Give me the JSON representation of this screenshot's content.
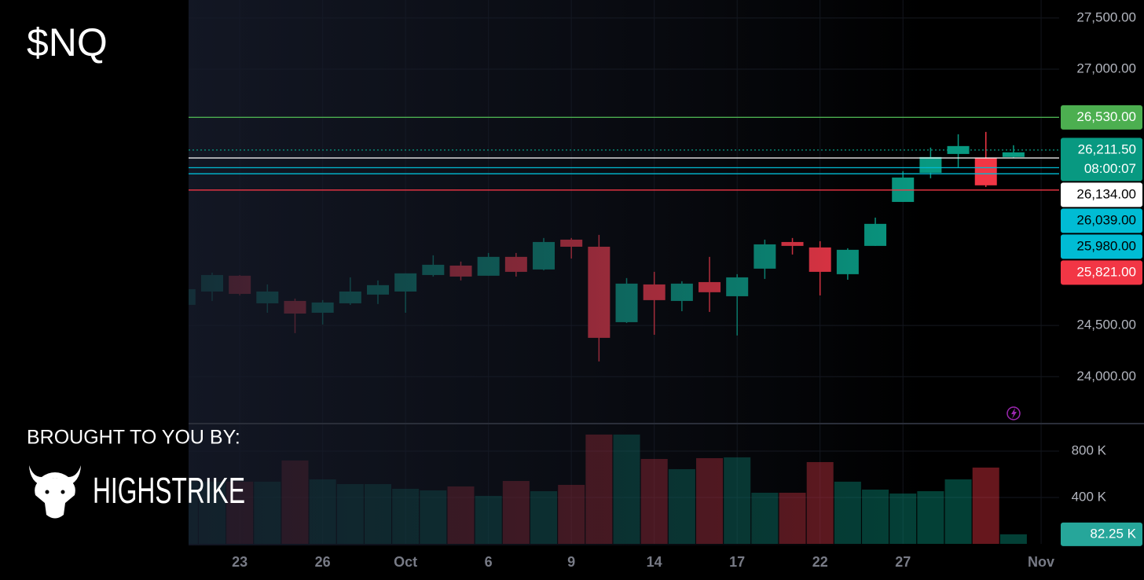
{
  "chart_data": {
    "type": "candlestick",
    "title": "$NQ",
    "up_color": "#089981",
    "down_color": "#f23645",
    "grid": true,
    "categories": [
      null,
      null,
      "23",
      null,
      null,
      "26",
      null,
      null,
      "Oct",
      null,
      null,
      "6",
      null,
      null,
      "9",
      null,
      null,
      "14",
      null,
      null,
      "17",
      null,
      null,
      "22",
      null,
      null,
      "27",
      null,
      null,
      null,
      null,
      "Nov"
    ],
    "ohlc": {
      "open": [
        24701,
        24831,
        24985,
        24716,
        24739,
        24624,
        24716,
        24801,
        24831,
        24992,
        25084,
        24985,
        25169,
        25046,
        25337,
        25268,
        24532,
        24900,
        24739,
        24923,
        24785,
        25054,
        25314,
        25261,
        25000,
        25276,
        25705,
        25989,
        26173,
        26135,
        26143,
        null
      ],
      "high": [
        24870,
        25015,
        24992,
        24900,
        24762,
        24747,
        24969,
        24939,
        25008,
        25184,
        25123,
        25207,
        25207,
        25353,
        25353,
        25383,
        24962,
        25023,
        24931,
        25169,
        25000,
        25337,
        25353,
        25322,
        25253,
        25552,
        26005,
        26235,
        26365,
        26388,
        26258,
        null
      ],
      "low": [
        24685,
        24739,
        24793,
        24624,
        24425,
        24509,
        24701,
        24709,
        24624,
        24977,
        24939,
        24985,
        24977,
        25038,
        25153,
        24149,
        24524,
        24409,
        24639,
        24632,
        24402,
        24954,
        25192,
        24793,
        24946,
        25276,
        25705,
        25936,
        26043,
        25851,
        26135,
        null
      ],
      "close": [
        24854,
        24992,
        24808,
        24831,
        24616,
        24724,
        24831,
        24893,
        25008,
        25092,
        24977,
        25169,
        25023,
        25314,
        25268,
        24379,
        24908,
        24747,
        24908,
        24824,
        24969,
        25291,
        25276,
        25023,
        25238,
        25491,
        25943,
        26143,
        26250,
        25867,
        26189,
        null
      ]
    },
    "ylim": [
      23550,
      27675
    ],
    "yticks": [
      {
        "value": 24000,
        "label": "24,000.00"
      },
      {
        "value": 24500,
        "label": "24,500.00"
      },
      {
        "value": 27000,
        "label": "27,000.00"
      },
      {
        "value": 27500,
        "label": "27,500.00"
      }
    ],
    "price_lines": [
      {
        "value": 26530,
        "label": "26,530.00",
        "color": "#4caf50",
        "text_color": "#ffffff"
      },
      {
        "value": 26211.5,
        "label": "26,211.50",
        "countdown": "08:00:07",
        "color": "#089981",
        "text_color": "#ffffff",
        "dotted": true
      },
      {
        "value": 26134,
        "label": "26,134.00",
        "color": "#ffffff",
        "text_color": "#000000"
      },
      {
        "value": 26039,
        "label": "26,039.00",
        "color": "#00bcd4",
        "text_color": "#000000"
      },
      {
        "value": 25980,
        "label": "25,980.00",
        "color": "#00bcd4",
        "text_color": "#000000"
      },
      {
        "value": 25821,
        "label": "25,821.00",
        "color": "#f23645",
        "text_color": "#ffffff"
      }
    ],
    "volume": {
      "values": [
        536000,
        536000,
        536000,
        536000,
        718700,
        556000,
        515000,
        515000,
        474600,
        461000,
        495000,
        413600,
        542000,
        454000,
        508500,
        942400,
        942400,
        732000,
        644000,
        739000,
        745800,
        440700,
        440700,
        705000,
        536000,
        467800,
        434000,
        454000,
        556000,
        657700,
        82250,
        null
      ],
      "value_labels": [
        null,
        null,
        null,
        null,
        null,
        null,
        null,
        null,
        null,
        null,
        null,
        null,
        null,
        null,
        null,
        null,
        null,
        null,
        null,
        null,
        null,
        null,
        null,
        null,
        null,
        null,
        null,
        null,
        null,
        null,
        "82.25 K",
        null
      ],
      "label_color": "#26a69a",
      "ylim": [
        0,
        1030000
      ],
      "yticks": [
        {
          "value": 400000,
          "label": "400 K"
        },
        {
          "value": 800000,
          "label": "800 K"
        }
      ]
    }
  },
  "branding": {
    "caption": "BROUGHT TO YOU BY:",
    "name": "HIGHSTRIKE"
  }
}
